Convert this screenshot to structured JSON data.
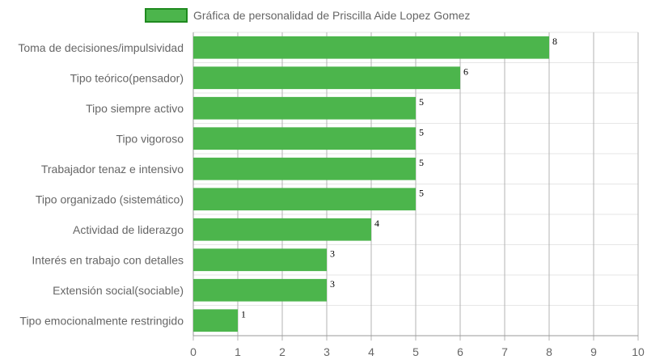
{
  "chart_data": {
    "type": "bar",
    "orientation": "horizontal",
    "categories": [
      "Toma de decisiones/impulsividad",
      "Tipo teórico(pensador)",
      "Tipo siempre activo",
      "Tipo vigoroso",
      "Trabajador tenaz e intensivo",
      "Tipo organizado (sistemático)",
      "Actividad de liderazgo",
      "Interés en trabajo con detalles",
      "Extensión social(sociable)",
      "Tipo emocionalmente restringido"
    ],
    "series": [
      {
        "name": "Gráfica de personalidad de Priscilla Aide Lopez Gomez",
        "values": [
          8,
          6,
          5,
          5,
          5,
          5,
          4,
          3,
          3,
          1
        ]
      }
    ],
    "xlim": [
      0,
      10
    ],
    "xticks": [
      "0",
      "1",
      "2",
      "3",
      "4",
      "5",
      "6",
      "7",
      "8",
      "9",
      "10"
    ],
    "grid": true,
    "legend_position": "top",
    "colors": {
      "bar_fill": "#4cb54c",
      "legend_border": "#1f8a1f",
      "grid": "#cccccc",
      "text": "#666666"
    }
  }
}
